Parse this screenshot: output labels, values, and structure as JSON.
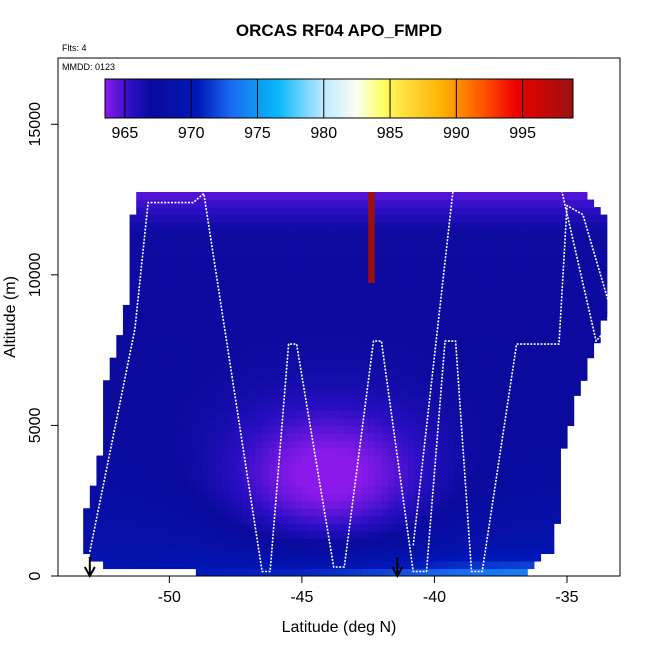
{
  "chart_data": {
    "type": "heatmap",
    "title": "ORCAS RF04 APO_FMPD",
    "corner_notes": [
      "Flts: 4",
      "MMDD: 0123"
    ],
    "xlabel": "Latitude (deg N)",
    "ylabel": "Altitude (m)",
    "xlim": [
      -54.2,
      -33
    ],
    "ylim": [
      0,
      17200
    ],
    "xticks": [
      -50,
      -45,
      -40,
      -35
    ],
    "xtick_labels": [
      "-50",
      "-45",
      "-40",
      "-35"
    ],
    "yticks": [
      0,
      5000,
      10000,
      15000
    ],
    "ytick_labels": [
      "0",
      "5000",
      "10000",
      "15000"
    ],
    "colorbar": {
      "vmin": 963.5,
      "vmax": 998.8,
      "ticks": [
        965,
        970,
        975,
        980,
        985,
        990,
        995
      ],
      "tick_labels": [
        "965",
        "970",
        "975",
        "980",
        "985",
        "990",
        "995"
      ],
      "color_stops": [
        {
          "value": 963.5,
          "color": "#8b1aea"
        },
        {
          "value": 965.5,
          "color": "#2a0fc4"
        },
        {
          "value": 967,
          "color": "#0a0a9c"
        },
        {
          "value": 970.5,
          "color": "#0018b8"
        },
        {
          "value": 973,
          "color": "#1a6af0"
        },
        {
          "value": 976.5,
          "color": "#08b8f8"
        },
        {
          "value": 980,
          "color": "#bfe8ff"
        },
        {
          "value": 982.5,
          "color": "#fafff0"
        },
        {
          "value": 984.5,
          "color": "#ffff60"
        },
        {
          "value": 986,
          "color": "#ffe040"
        },
        {
          "value": 989,
          "color": "#ffb000"
        },
        {
          "value": 992,
          "color": "#ff5500"
        },
        {
          "value": 994.5,
          "color": "#ee0000"
        },
        {
          "value": 998.8,
          "color": "#9a1010"
        }
      ]
    },
    "field_description": "Interpolated APO_FMPD curtain along flight track",
    "field_extent": {
      "lat_ranges": [
        {
          "alt": 0,
          "lat": [
            -46.6,
            -36.5
          ]
        },
        {
          "alt": 300,
          "lat": [
            -52.3,
            -36.5
          ]
        },
        {
          "alt": 800,
          "lat": [
            -53.2,
            -35.6
          ]
        },
        {
          "alt": 2000,
          "lat": [
            -53.2,
            -35.3
          ]
        },
        {
          "alt": 4000,
          "lat": [
            -52.6,
            -35.2
          ]
        },
        {
          "alt": 6000,
          "lat": [
            -52.5,
            -34.6
          ]
        },
        {
          "alt": 9000,
          "lat": [
            -51.6,
            -33.4
          ]
        },
        {
          "alt": 12000,
          "lat": [
            -51.4,
            -33.6
          ]
        },
        {
          "alt": 12800,
          "lat": [
            -51.1,
            -34.3
          ]
        }
      ]
    },
    "flight_track": {
      "lat": [
        -53.0,
        -51.3,
        -50.8,
        -49.6,
        -49.1,
        -48.7,
        -46.5,
        -46.2,
        -45.5,
        -45.2,
        -43.8,
        -43.4,
        -42.3,
        -42.0,
        -40.8,
        -40.3,
        -39.6,
        -39.2,
        -38.6,
        -38.2,
        -36.9,
        -36.4,
        -35.3,
        -35.0,
        -34.4,
        -33.9,
        -33.4,
        -33.5,
        -33.9,
        -35.2,
        -36.5,
        -39.3,
        -40.8
      ],
      "alt": [
        800,
        8200,
        12400,
        12400,
        12400,
        12700,
        150,
        150,
        7700,
        7700,
        300,
        300,
        7800,
        7800,
        150,
        150,
        7800,
        7800,
        150,
        150,
        7700,
        7700,
        7700,
        12300,
        12000,
        10500,
        9000,
        8200,
        7800,
        12800,
        12800,
        12800,
        1000
      ]
    },
    "arrows_lat": [
      -53.0,
      -41.4
    ]
  }
}
